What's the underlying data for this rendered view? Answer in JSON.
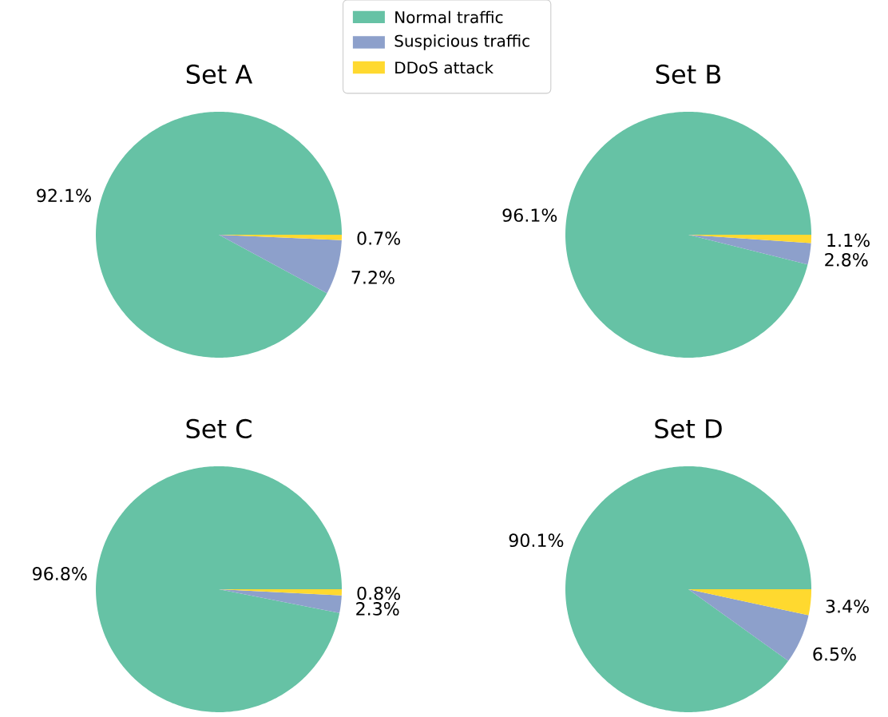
{
  "chart_data": [
    {
      "type": "pie",
      "title": "Set A",
      "categories": [
        "Normal traffic",
        "Suspicious traffic",
        "DDoS attack"
      ],
      "values": [
        92.1,
        7.2,
        0.7
      ],
      "value_labels": [
        "92.1%",
        "7.2%",
        "0.7%"
      ],
      "colors": [
        "#66c2a5",
        "#8da0cb",
        "#ffd92f"
      ],
      "legend": "top"
    },
    {
      "type": "pie",
      "title": "Set B",
      "categories": [
        null,
        null,
        null
      ],
      "values": [
        96.1,
        2.8,
        1.1
      ],
      "value_labels": [
        "96.1%",
        "2.8%",
        "1.1%"
      ],
      "colors": [
        "#66c2a5",
        "#8da0cb",
        "#ffd92f"
      ]
    },
    {
      "type": "pie",
      "title": "Set C",
      "categories": [
        null,
        null,
        null
      ],
      "values": [
        96.8,
        2.3,
        0.8
      ],
      "value_labels": [
        "96.8%",
        "2.3%",
        "0.8%"
      ],
      "colors": [
        "#66c2a5",
        "#8da0cb",
        "#ffd92f"
      ]
    },
    {
      "type": "pie",
      "title": "Set D",
      "categories": [
        null,
        null,
        null
      ],
      "values": [
        90.1,
        6.5,
        3.4
      ],
      "value_labels": [
        "90.1%",
        "6.5%",
        "3.4%"
      ],
      "colors": [
        "#66c2a5",
        "#8da0cb",
        "#ffd92f"
      ]
    }
  ]
}
